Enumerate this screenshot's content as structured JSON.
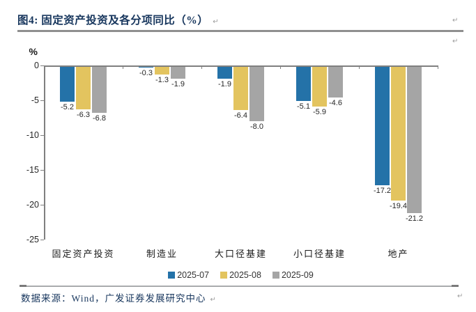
{
  "page": {
    "return_mark": "↵"
  },
  "header": {
    "title": "图4:  固定资产投资及各分项同比（%）"
  },
  "chart_data": {
    "type": "bar",
    "title": "固定资产投资及各分项同比（%）",
    "categories": [
      "固定资产投资",
      "制造业",
      "大口径基建",
      "小口径基建",
      "地产"
    ],
    "series": [
      {
        "name": "2025-07",
        "color": "#2472A8",
        "values": [
          -5.2,
          -0.3,
          -1.9,
          -5.1,
          -17.2
        ]
      },
      {
        "name": "2025-08",
        "color": "#E3C45F",
        "values": [
          -6.3,
          -1.3,
          -6.4,
          -5.9,
          -19.4
        ]
      },
      {
        "name": "2025-09",
        "color": "#A5A5A5",
        "values": [
          -6.8,
          -1.9,
          -8.0,
          -4.6,
          -21.2
        ]
      }
    ],
    "ylabel": "%",
    "ylim": [
      -25,
      0
    ],
    "yticks": [
      0,
      -5,
      -10,
      -15,
      -20,
      -25
    ],
    "grid": false,
    "legend_position": "bottom",
    "value_labels": true,
    "value_label_decimals": 1
  },
  "footer": {
    "source": "数据来源：Wind，广发证券发展研究中心"
  }
}
